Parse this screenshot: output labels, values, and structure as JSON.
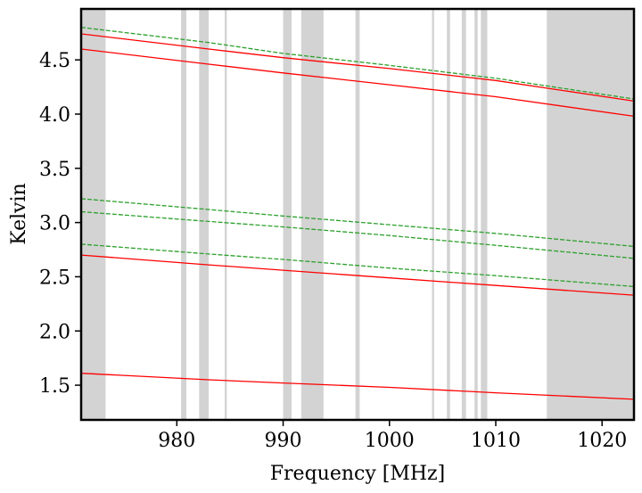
{
  "chart_data": {
    "type": "line",
    "xlabel": "Frequency [MHz]",
    "ylabel": "Kelvin",
    "xlim": [
      971,
      1023
    ],
    "ylim": [
      1.18,
      4.97
    ],
    "xticks": [
      980,
      990,
      1000,
      1010,
      1020
    ],
    "yticks": [
      1.5,
      2.0,
      2.5,
      3.0,
      3.5,
      4.0,
      4.5
    ],
    "grid": false,
    "legend": "none",
    "colors": {
      "solid": "#ff0000",
      "dashed": "#2ca02c",
      "mask": "#d3d3d3"
    },
    "masked_bands": [
      [
        971.0,
        973.3
      ],
      [
        980.4,
        980.9
      ],
      [
        982.1,
        983.0
      ],
      [
        984.5,
        984.7
      ],
      [
        990.0,
        990.8
      ],
      [
        991.7,
        993.8
      ],
      [
        996.8,
        997.2
      ],
      [
        1004.0,
        1004.2
      ],
      [
        1005.4,
        1005.7
      ],
      [
        1006.8,
        1007.2
      ],
      [
        1008.0,
        1008.3
      ],
      [
        1008.6,
        1009.2
      ],
      [
        1014.8,
        1023.0
      ]
    ],
    "series": [
      {
        "style": "solid",
        "x": [
          971,
          983,
          990,
          1000,
          1010,
          1023
        ],
        "y": [
          4.74,
          4.6,
          4.52,
          4.42,
          4.31,
          4.12
        ]
      },
      {
        "style": "solid",
        "x": [
          971,
          983,
          990,
          1000,
          1010,
          1023
        ],
        "y": [
          4.6,
          4.46,
          4.38,
          4.27,
          4.16,
          3.98
        ]
      },
      {
        "style": "solid",
        "x": [
          971,
          983,
          990,
          1000,
          1010,
          1023
        ],
        "y": [
          2.7,
          2.61,
          2.56,
          2.49,
          2.42,
          2.33
        ]
      },
      {
        "style": "solid",
        "x": [
          971,
          983,
          990,
          1000,
          1010,
          1023
        ],
        "y": [
          1.61,
          1.55,
          1.52,
          1.48,
          1.43,
          1.37
        ]
      },
      {
        "style": "dashed",
        "x": [
          971,
          983,
          990,
          1000,
          1010,
          1023
        ],
        "y": [
          4.8,
          4.66,
          4.56,
          4.45,
          4.33,
          4.14
        ]
      },
      {
        "style": "dashed",
        "x": [
          971,
          983,
          990,
          1000,
          1010,
          1023
        ],
        "y": [
          3.22,
          3.12,
          3.06,
          2.98,
          2.9,
          2.78
        ]
      },
      {
        "style": "dashed",
        "x": [
          971,
          983,
          990,
          1000,
          1010,
          1023
        ],
        "y": [
          3.1,
          3.01,
          2.96,
          2.88,
          2.79,
          2.67
        ]
      },
      {
        "style": "dashed",
        "x": [
          971,
          983,
          990,
          1000,
          1010,
          1023
        ],
        "y": [
          2.8,
          2.71,
          2.66,
          2.58,
          2.51,
          2.41
        ]
      }
    ]
  }
}
